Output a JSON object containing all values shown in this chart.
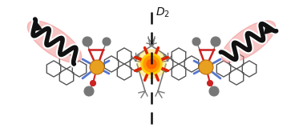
{
  "bg_color": "#ffffff",
  "dashed_line_color": "#111111",
  "sun_color_inner": "#ff6600",
  "sun_color_mid": "#ff9900",
  "sun_color_outer": "#ffcc00",
  "sun_ray_color": "#dd2200",
  "metal_color": "#e8a020",
  "metal_edge": "#c07010",
  "ligand_gray": "#777777",
  "ligand_dark": "#555555",
  "ligand_blue": "#5577cc",
  "ligand_red": "#cc2222",
  "glow_color": "#f08080",
  "glow_alpha": 0.45,
  "arrow_color": "#111111",
  "helix_color": "#111111",
  "figure_width": 3.78,
  "figure_height": 1.6,
  "D2_label": "$\\mathit{D}_2$"
}
